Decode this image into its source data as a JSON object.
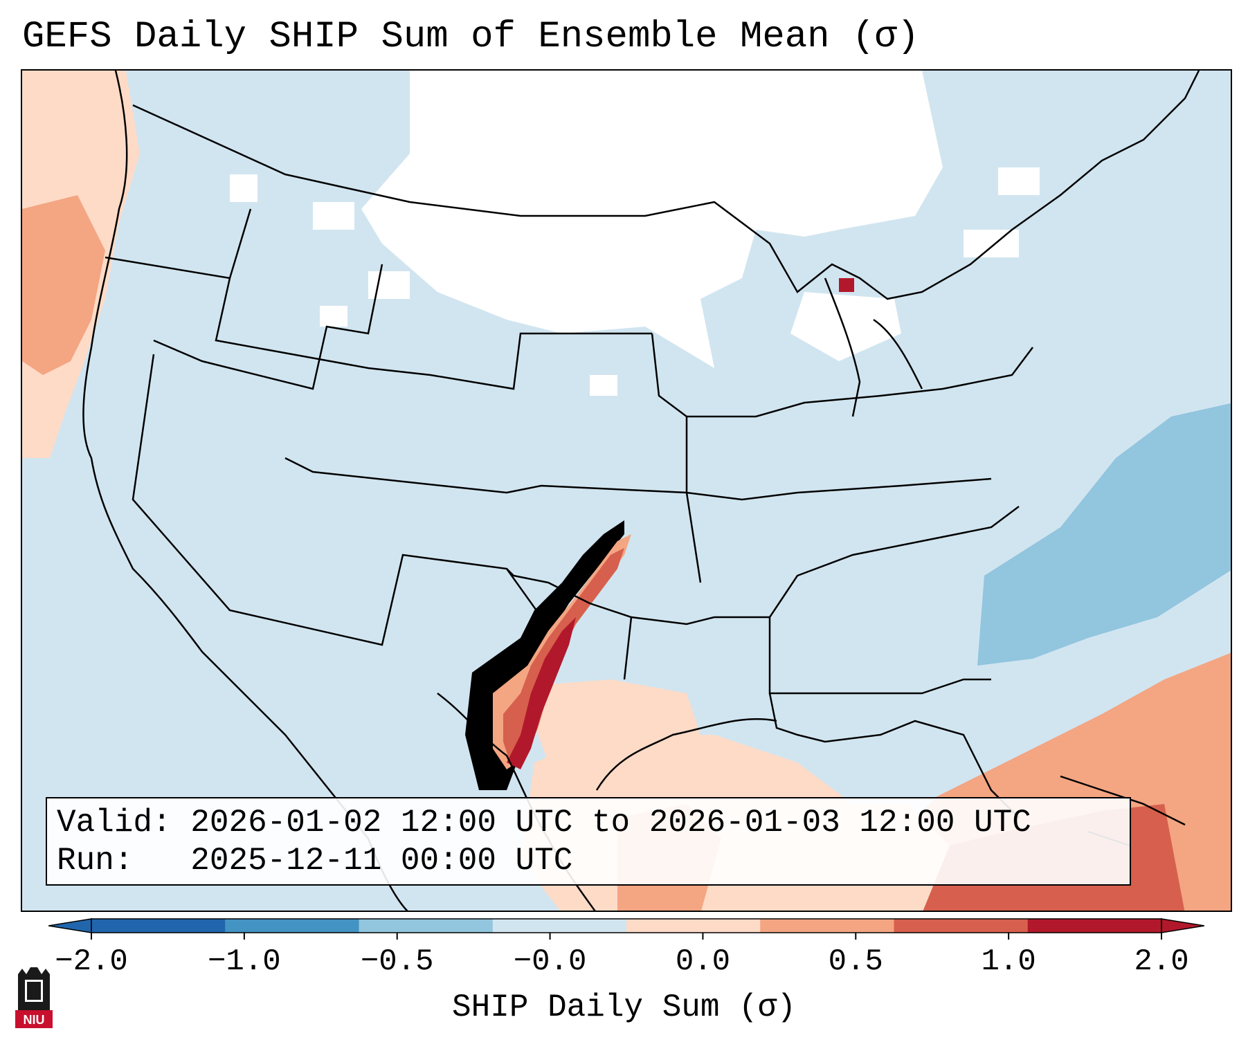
{
  "title": "GEFS Daily SHIP Sum of Ensemble Mean (σ)",
  "info": {
    "valid_label": "Valid:",
    "valid_value": "2026-01-02 12:00 UTC to 2026-01-03 12:00 UTC",
    "run_label": "Run:  ",
    "run_value": "2025-12-11 00:00 UTC"
  },
  "colorbar": {
    "label": "SHIP Daily Sum (σ)",
    "ticks": [
      "−2.0",
      "−1.0",
      "−0.5",
      "−0.0",
      "0.0",
      "0.5",
      "1.0",
      "2.0"
    ],
    "colors": [
      "#2166ac",
      "#4393c3",
      "#92c5de",
      "#d1e5f0",
      "#fddbc7",
      "#f4a582",
      "#d6604d",
      "#b2182b"
    ],
    "under_color": "#2166ac",
    "over_color": "#b2182b"
  },
  "logo": {
    "text": "NIU",
    "icon": "niu-castle-logo-icon"
  }
}
